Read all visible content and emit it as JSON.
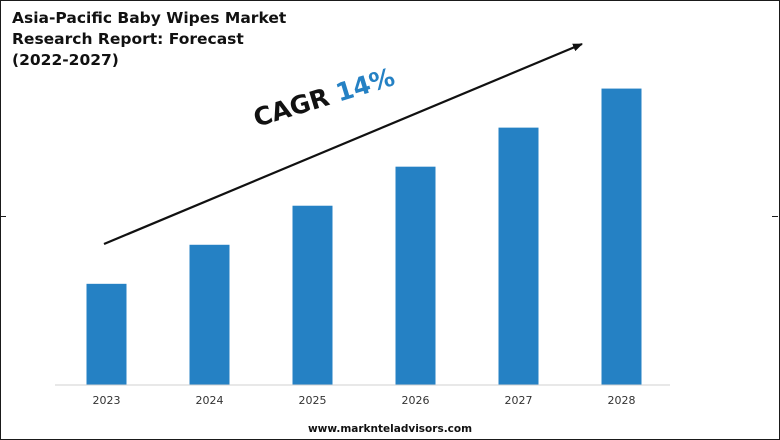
{
  "chart_data": {
    "type": "bar",
    "title": "Asia-Pacific Baby Wipes Market Research Report: Forecast (2022-2027)",
    "categories": [
      "2023",
      "2024",
      "2025",
      "2026",
      "2027",
      "2028"
    ],
    "values": [
      28.5,
      39.5,
      50.5,
      61.5,
      72.5,
      83.5
    ],
    "ylim": [
      0,
      100
    ],
    "xlabel": "",
    "ylabel": "",
    "grid": false,
    "bar_color": "#2581c4",
    "annotation": {
      "label": "CAGR",
      "value": "14%",
      "arrow": "trend-up"
    }
  },
  "header": {
    "title_lines": [
      "Asia-Pacific Baby Wipes Market",
      "Research Report: Forecast",
      "(2022-2027)"
    ]
  },
  "footer": {
    "source": "www.marknteladvisors.com"
  },
  "colors": {
    "bar": "#2581c4",
    "accent": "#2581c4",
    "text": "#111111"
  }
}
